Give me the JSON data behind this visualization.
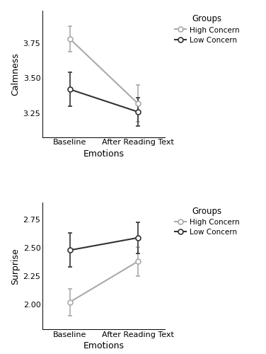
{
  "top_plot": {
    "ylabel": "Calmness",
    "xlabel": "Emotions",
    "xtick_labels": [
      "Baseline",
      "After Reading Text"
    ],
    "high_concern": {
      "means": [
        3.78,
        3.32
      ],
      "errors": [
        0.09,
        0.13
      ],
      "color": "#aaaaaa",
      "label": "High Concern"
    },
    "low_concern": {
      "means": [
        3.42,
        3.26
      ],
      "errors": [
        0.12,
        0.1
      ],
      "color": "#333333",
      "label": "Low Concern"
    },
    "ylim": [
      3.08,
      3.98
    ],
    "yticks": [
      3.25,
      3.5,
      3.75
    ]
  },
  "bottom_plot": {
    "ylabel": "Surprise",
    "xlabel": "Emotions",
    "xtick_labels": [
      "Baseline",
      "After Reading Text"
    ],
    "high_concern": {
      "means": [
        2.02,
        2.38
      ],
      "errors": [
        0.12,
        0.13
      ],
      "color": "#aaaaaa",
      "label": "High Concern"
    },
    "low_concern": {
      "means": [
        2.48,
        2.59
      ],
      "errors": [
        0.15,
        0.14
      ],
      "color": "#333333",
      "label": "Low Concern"
    },
    "ylim": [
      1.78,
      2.9
    ],
    "yticks": [
      2.0,
      2.25,
      2.5,
      2.75
    ]
  },
  "legend_title": "Groups",
  "background_color": "#ffffff",
  "marker_size": 5,
  "linewidth": 1.5,
  "capsize": 2,
  "elinewidth": 1.2
}
